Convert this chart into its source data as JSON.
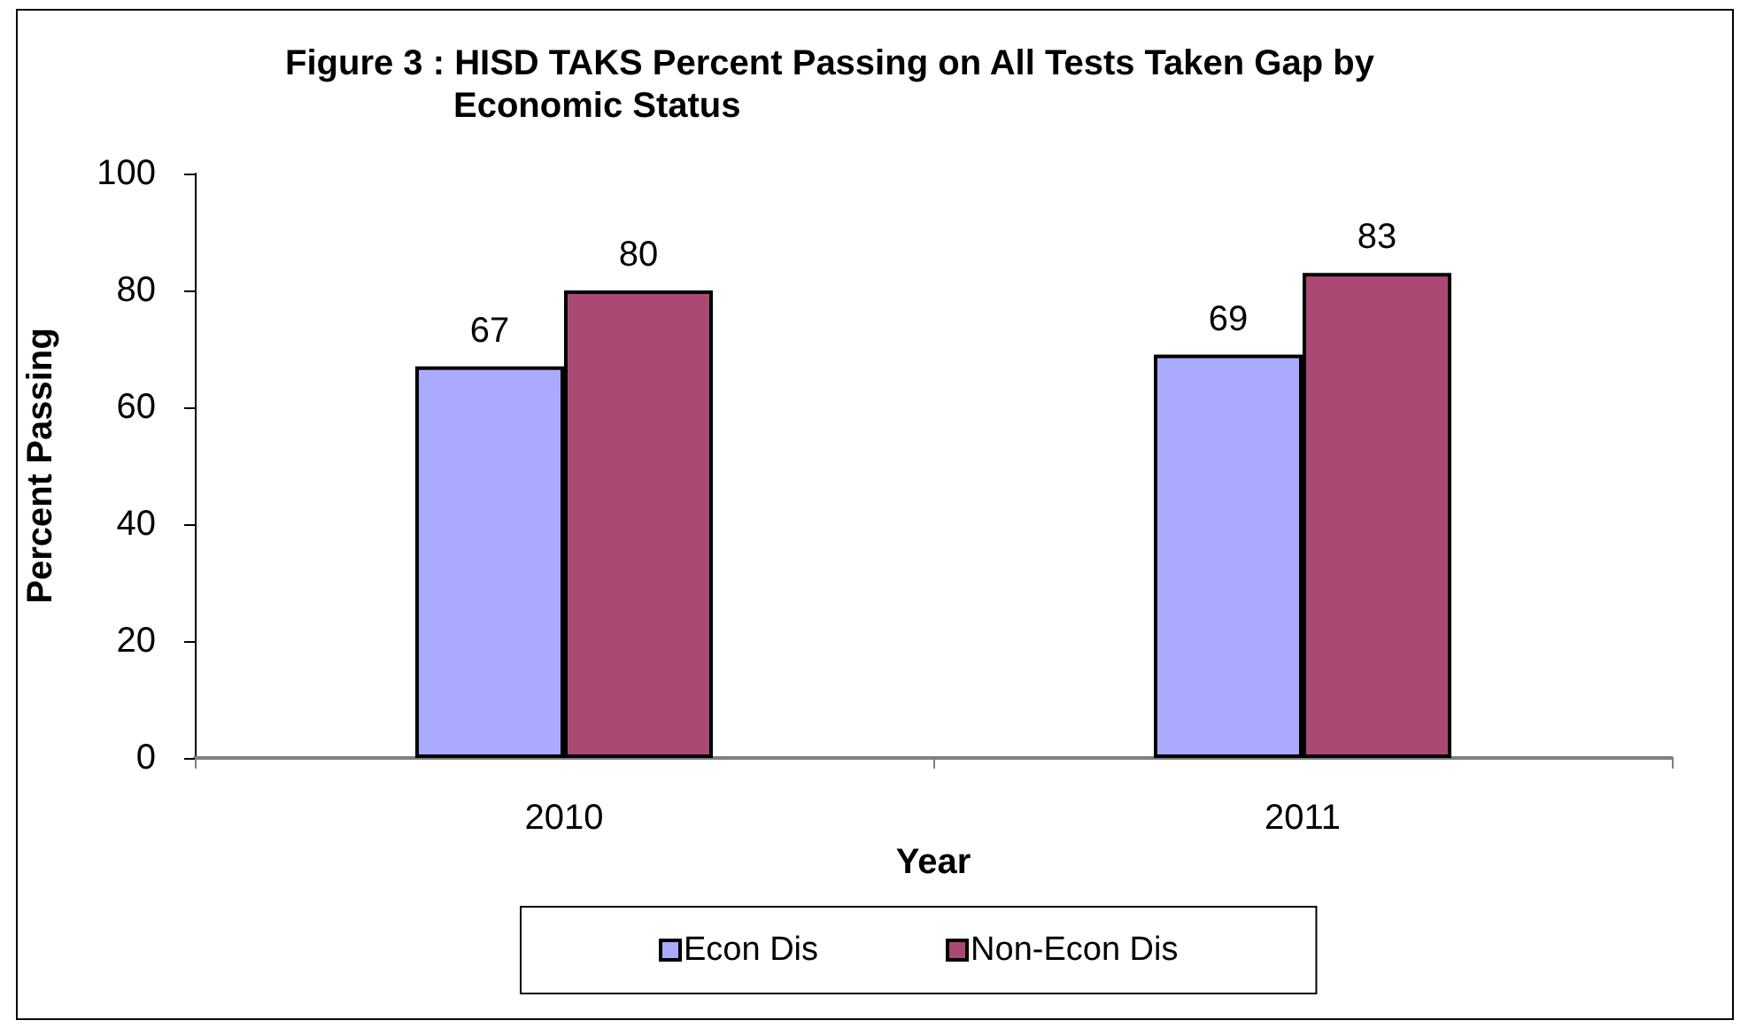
{
  "chart_data": {
    "type": "bar",
    "title": "Figure 3 : HISD TAKS Percent Passing on All Tests Taken Gap by Economic Status",
    "xlabel": "Year",
    "ylabel": "Percent Passing",
    "categories": [
      "2010",
      "2011"
    ],
    "series": [
      {
        "name": "Econ Dis",
        "color": "#aaaaff",
        "values": [
          67,
          69
        ]
      },
      {
        "name": "Non-Econ Dis",
        "color": "#aa4a74",
        "values": [
          80,
          83
        ]
      }
    ],
    "ylim": [
      0,
      100
    ],
    "yticks": [
      0,
      20,
      40,
      60,
      80,
      100
    ],
    "data_labels": true,
    "legend": "bottom",
    "grid": false
  }
}
